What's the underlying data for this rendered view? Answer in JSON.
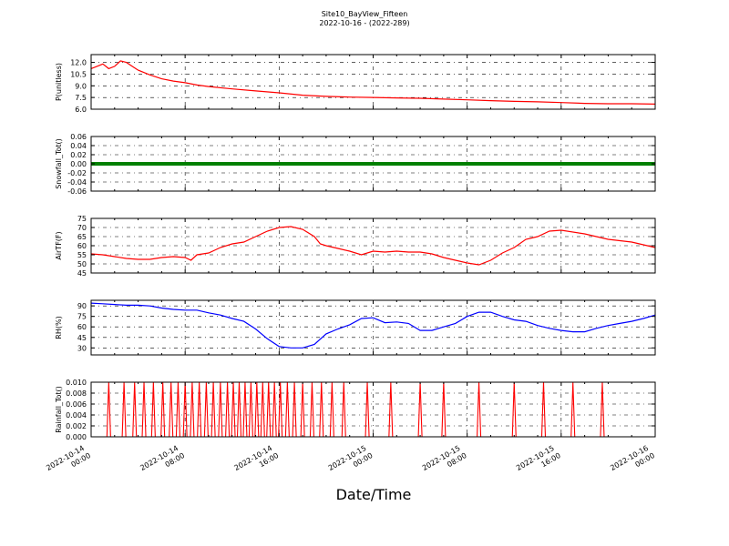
{
  "figure": {
    "title_line1": "Site10_BayView_Fifteen",
    "title_line2": "2022-10-16 - (2022-289)",
    "xlabel": "Date/Time"
  },
  "chart_data": [
    {
      "type": "line",
      "ylabel": "P(unitless)",
      "color": "#ff0000",
      "ylim": [
        6.0,
        13.0
      ],
      "yticks": [
        "12.0",
        "10.5",
        "9.0",
        "7.5",
        "6.0"
      ],
      "ytick_values": [
        12.0,
        10.5,
        9.0,
        7.5,
        6.0
      ],
      "xlim": [
        0,
        48
      ],
      "x": [
        0,
        0.5,
        1,
        1.5,
        2,
        2.5,
        3,
        3.5,
        4,
        5,
        6,
        7,
        8,
        9,
        10,
        12,
        14,
        16,
        18,
        20,
        22,
        24,
        26,
        28,
        30,
        32,
        34,
        36,
        38,
        40,
        42,
        44,
        46,
        48
      ],
      "y": [
        11.2,
        11.5,
        11.8,
        11.2,
        11.5,
        12.2,
        12.0,
        11.5,
        11.0,
        10.4,
        9.9,
        9.6,
        9.4,
        9.1,
        8.9,
        8.6,
        8.35,
        8.1,
        7.8,
        7.65,
        7.55,
        7.5,
        7.45,
        7.4,
        7.3,
        7.2,
        7.1,
        7.0,
        6.95,
        6.85,
        6.75,
        6.7,
        6.7,
        6.65
      ],
      "grid": true
    },
    {
      "type": "line",
      "ylabel": "Snowfall_Tot()",
      "color": "#008000",
      "ylim": [
        -0.06,
        0.06
      ],
      "yticks": [
        "0.06",
        "0.04",
        "0.02",
        "0.00",
        "-0.02",
        "-0.04",
        "-0.06"
      ],
      "ytick_values": [
        0.06,
        0.04,
        0.02,
        0.0,
        -0.02,
        -0.04,
        -0.06
      ],
      "xlim": [
        0,
        48
      ],
      "x": [
        0,
        48
      ],
      "y": [
        0,
        0
      ],
      "grid": true
    },
    {
      "type": "line",
      "ylabel": "AirTF(F)",
      "color": "#ff0000",
      "ylim": [
        45,
        75
      ],
      "yticks": [
        "75",
        "70",
        "65",
        "60",
        "55",
        "50",
        "45"
      ],
      "ytick_values": [
        75,
        70,
        65,
        60,
        55,
        50,
        45
      ],
      "xlim": [
        0,
        48
      ],
      "x": [
        0,
        1,
        2,
        3,
        4,
        5,
        6,
        7,
        8,
        8.5,
        9,
        10,
        11,
        12,
        13,
        14,
        15,
        16,
        17,
        18,
        19,
        19.5,
        20,
        21,
        22,
        23,
        24,
        25,
        26,
        27,
        28,
        29,
        30,
        31,
        32,
        33,
        34,
        35,
        36,
        37,
        38,
        39,
        40,
        42,
        44,
        46,
        48
      ],
      "y": [
        55.5,
        55.0,
        54.0,
        53.0,
        52.5,
        52.5,
        53.5,
        54.0,
        53.5,
        52.0,
        55.0,
        56.0,
        59.0,
        61.0,
        62.0,
        65.0,
        68.0,
        70.0,
        70.5,
        69.0,
        65.0,
        61.0,
        60.0,
        58.5,
        57.0,
        55.0,
        57.0,
        56.5,
        57.0,
        56.5,
        56.5,
        55.5,
        53.5,
        52.0,
        50.5,
        49.5,
        52.0,
        56.0,
        59.0,
        63.5,
        65.0,
        68.0,
        68.5,
        66.5,
        63.5,
        62.0,
        59.0
      ],
      "grid": true
    },
    {
      "type": "line",
      "ylabel": "RH(%)",
      "color": "#0000ff",
      "ylim": [
        20,
        98
      ],
      "yticks": [
        "90",
        "75",
        "60",
        "45",
        "30"
      ],
      "ytick_values": [
        90,
        75,
        60,
        45,
        30
      ],
      "xlim": [
        0,
        48
      ],
      "x": [
        0,
        1,
        2,
        3,
        4,
        5,
        6,
        7,
        8,
        9,
        10,
        11,
        12,
        13,
        14,
        15,
        16,
        17,
        18,
        19,
        20,
        21,
        22,
        23,
        24,
        25,
        26,
        27,
        28,
        29,
        30,
        31,
        32,
        33,
        34,
        35,
        36,
        37,
        38,
        39,
        40,
        41,
        42,
        43,
        44,
        45,
        46,
        47,
        48
      ],
      "y": [
        94,
        93,
        92,
        91,
        91,
        90,
        87,
        85,
        84,
        84,
        80,
        77,
        72,
        68,
        57,
        43,
        32,
        30,
        30,
        35,
        50,
        57,
        63,
        72,
        73,
        66,
        67,
        65,
        55,
        55,
        60,
        65,
        75,
        81,
        81,
        75,
        70,
        68,
        62,
        58,
        55,
        53,
        53,
        58,
        62,
        65,
        68,
        72,
        77
      ],
      "grid": true
    },
    {
      "type": "line",
      "ylabel": "Rainfall_Tot()",
      "color": "#ff0000",
      "ylim": [
        0.0,
        0.01
      ],
      "yticks": [
        "0.010",
        "0.008",
        "0.006",
        "0.004",
        "0.002",
        "0.000"
      ],
      "ytick_values": [
        0.01,
        0.008,
        0.006,
        0.004,
        0.002,
        0.0
      ],
      "xlim": [
        0,
        48
      ],
      "spike_height": 0.01,
      "spikes_x": [
        1.5,
        2.8,
        3.7,
        4.5,
        5.3,
        6.1,
        6.8,
        7.4,
        8.0,
        8.6,
        9.2,
        9.8,
        10.4,
        11.0,
        11.6,
        12.1,
        12.6,
        13.1,
        13.6,
        14.1,
        14.6,
        15.1,
        15.6,
        16.1,
        16.7,
        17.3,
        18.0,
        18.8,
        19.6,
        20.5,
        21.5,
        23.5,
        25.5,
        28.0,
        30.0,
        33.0,
        36.0,
        38.5,
        41.0,
        43.5
      ],
      "grid": true
    }
  ],
  "x_axis": {
    "tick_positions": [
      0,
      8,
      16,
      24,
      32,
      40,
      48
    ],
    "tick_labels": [
      [
        "2022-10-14",
        "00:00"
      ],
      [
        "2022-10-14",
        "08:00"
      ],
      [
        "2022-10-14",
        "16:00"
      ],
      [
        "2022-10-15",
        "00:00"
      ],
      [
        "2022-10-15",
        "08:00"
      ],
      [
        "2022-10-15",
        "16:00"
      ],
      [
        "2022-10-16",
        "00:00"
      ]
    ]
  }
}
